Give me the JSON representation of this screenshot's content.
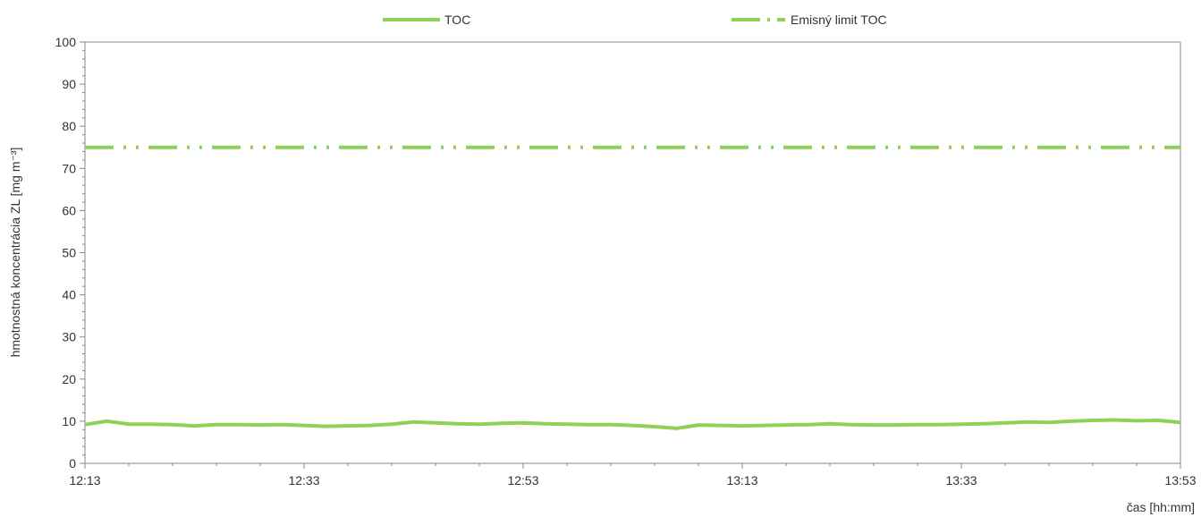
{
  "chart_data": {
    "type": "line",
    "title": "",
    "xlabel": "čas [hh:mm]",
    "ylabel": "hmotnostná koncentrácia ZL [mg m⁻³]",
    "ylim": [
      0,
      100
    ],
    "xlim": [
      "12:13",
      "13:53"
    ],
    "yticks": [
      0,
      10,
      20,
      30,
      40,
      50,
      60,
      70,
      80,
      90,
      100
    ],
    "xticks": [
      "12:13",
      "12:33",
      "12:53",
      "13:13",
      "13:33",
      "13:53"
    ],
    "grid": false,
    "legend_position": "top-center",
    "series": [
      {
        "name": "TOC",
        "color": "#8fd158",
        "style": "solid",
        "x": [
          "12:13",
          "12:15",
          "12:17",
          "12:19",
          "12:21",
          "12:23",
          "12:25",
          "12:27",
          "12:29",
          "12:31",
          "12:33",
          "12:35",
          "12:37",
          "12:39",
          "12:41",
          "12:43",
          "12:45",
          "12:47",
          "12:49",
          "12:51",
          "12:53",
          "12:55",
          "12:57",
          "12:59",
          "13:01",
          "13:03",
          "13:05",
          "13:07",
          "13:09",
          "13:11",
          "13:13",
          "13:15",
          "13:17",
          "13:19",
          "13:21",
          "13:23",
          "13:25",
          "13:27",
          "13:29",
          "13:31",
          "13:33",
          "13:35",
          "13:37",
          "13:39",
          "13:41",
          "13:43",
          "13:45",
          "13:47",
          "13:49",
          "13:51",
          "13:53"
        ],
        "values": [
          9.2,
          10.0,
          9.3,
          9.3,
          9.2,
          8.9,
          9.2,
          9.2,
          9.1,
          9.2,
          9.0,
          8.8,
          8.9,
          9.0,
          9.3,
          9.8,
          9.6,
          9.4,
          9.3,
          9.5,
          9.6,
          9.4,
          9.3,
          9.2,
          9.2,
          9.0,
          8.7,
          8.3,
          9.1,
          9.0,
          8.9,
          9.0,
          9.1,
          9.2,
          9.4,
          9.2,
          9.1,
          9.1,
          9.2,
          9.2,
          9.3,
          9.4,
          9.6,
          9.8,
          9.7,
          10.0,
          10.2,
          10.3,
          10.1,
          10.2,
          9.7
        ]
      },
      {
        "name": "Emisný limit TOC",
        "color": "#8fd158",
        "style": "dash-dot-dot",
        "x": [
          "12:13",
          "13:53"
        ],
        "values": [
          75,
          75
        ]
      }
    ]
  }
}
